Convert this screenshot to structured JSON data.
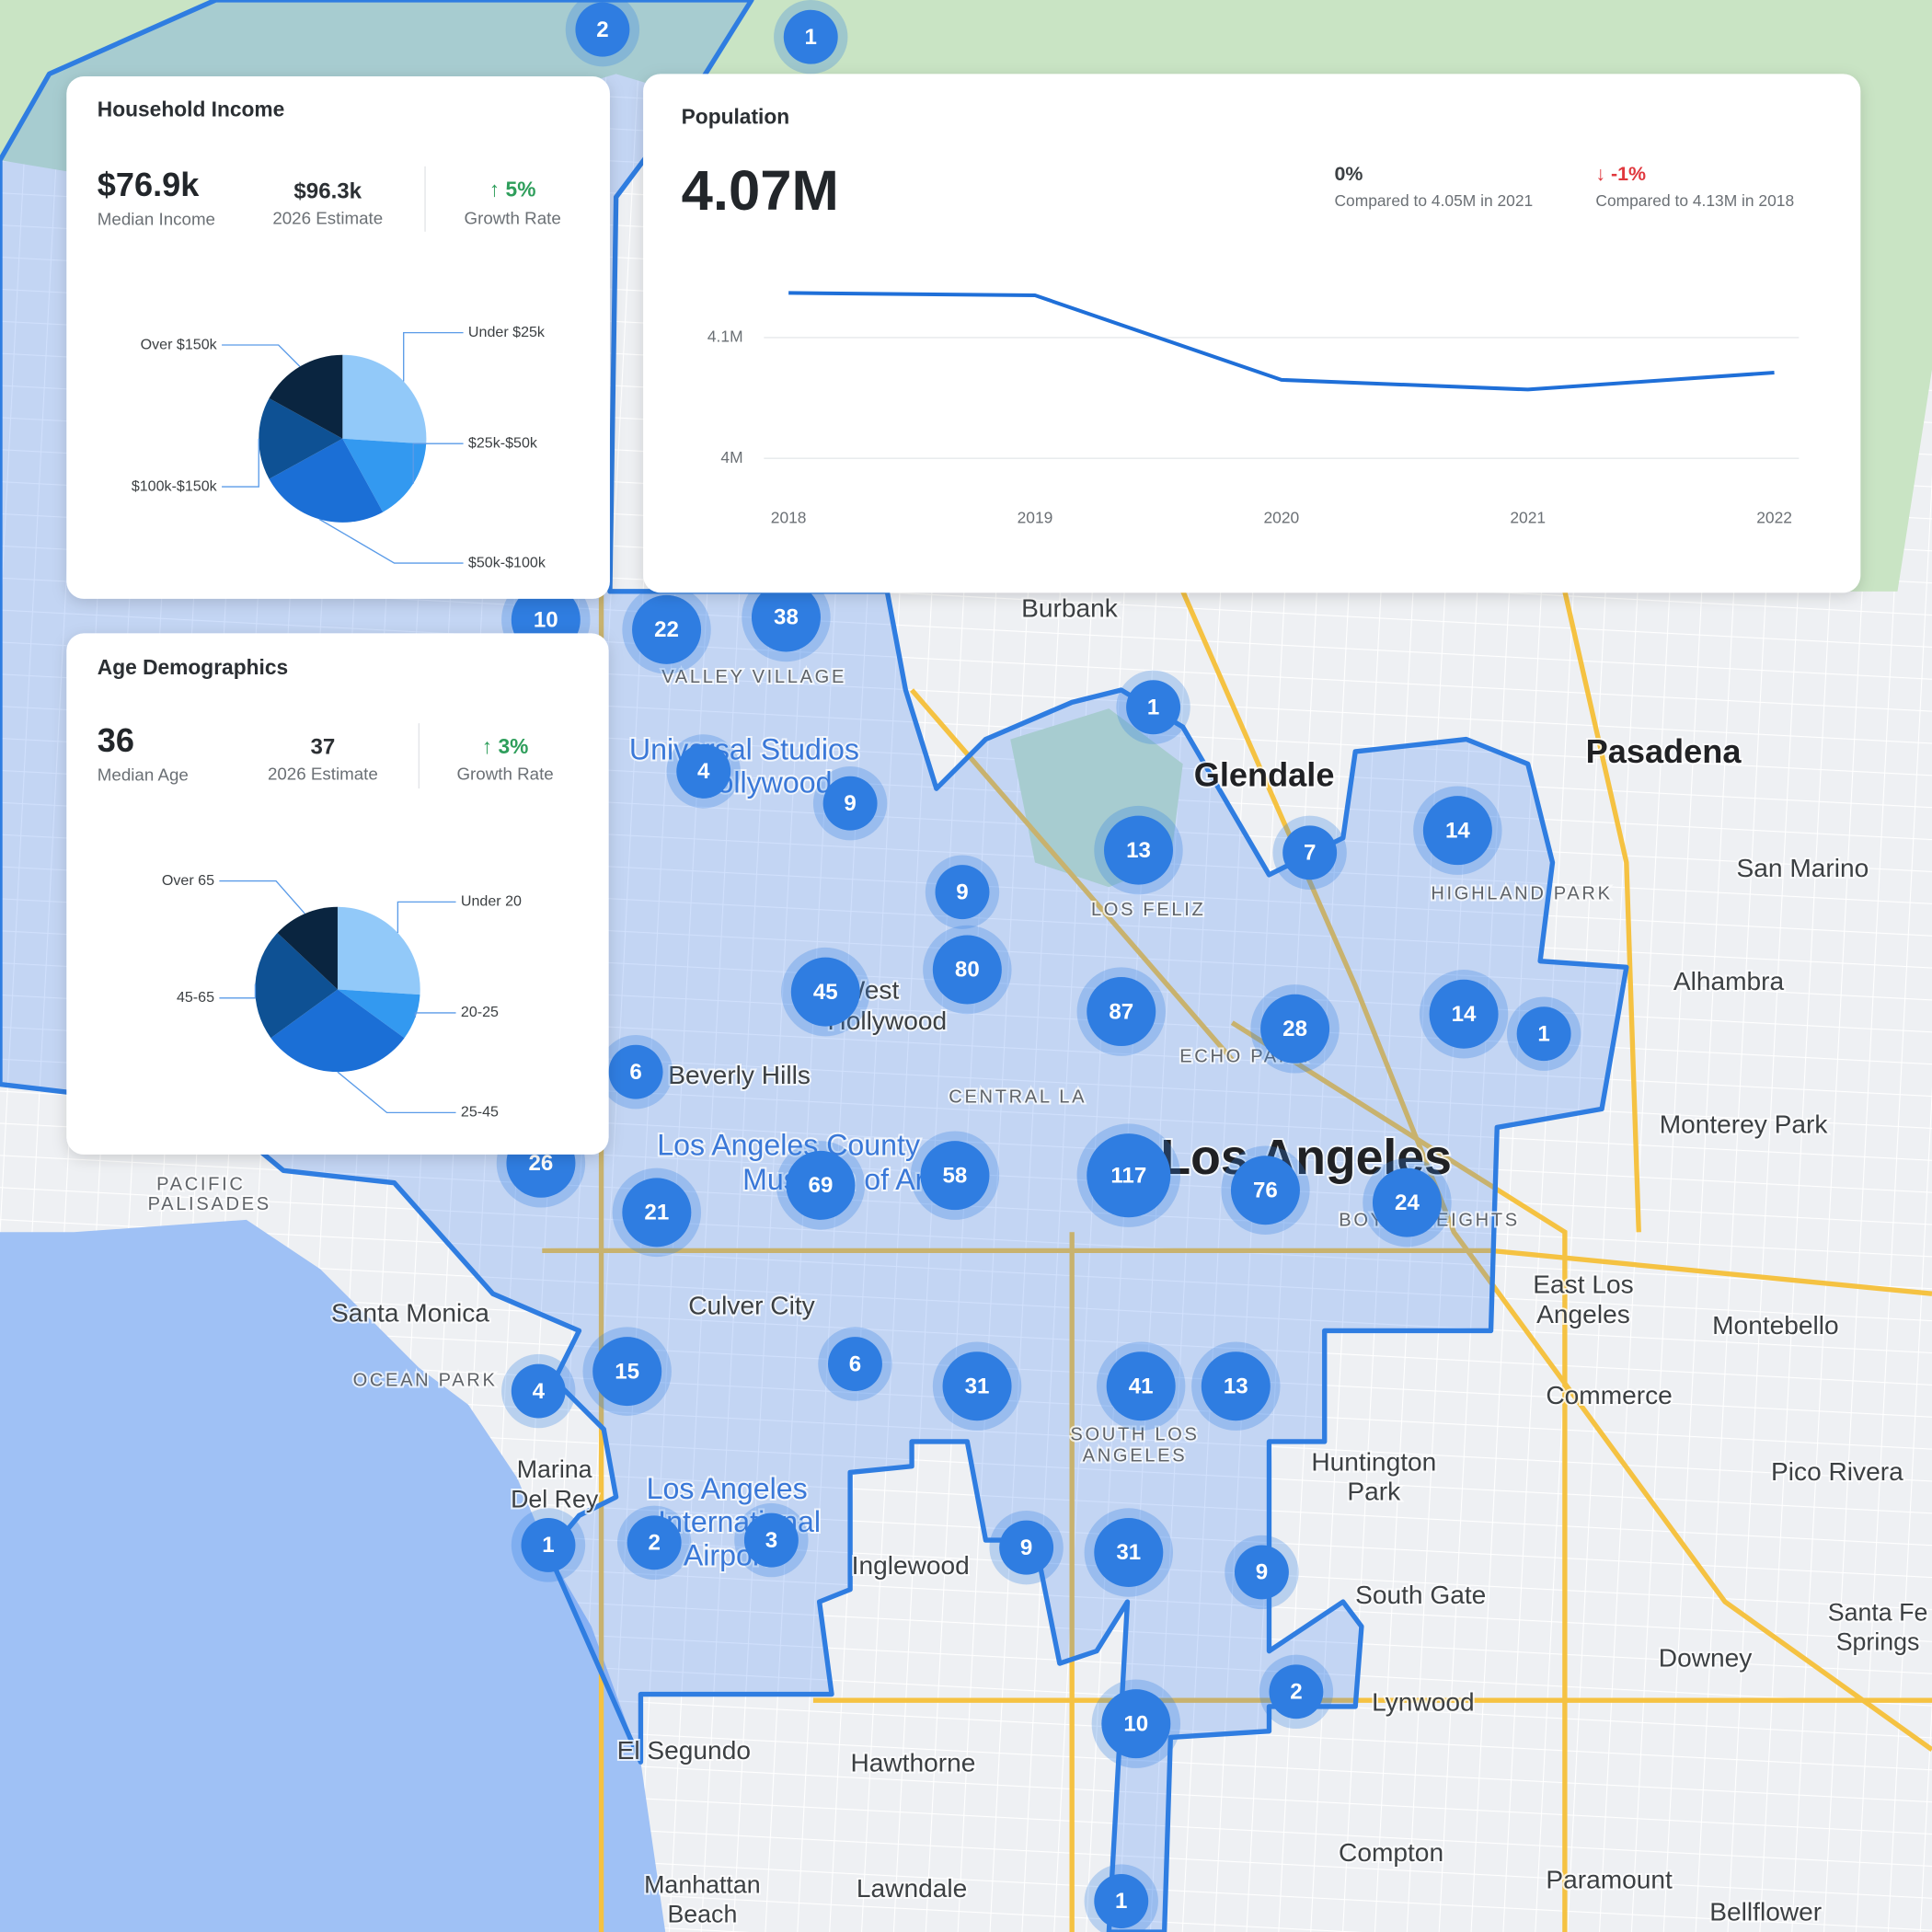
{
  "household_income": {
    "title": "Household Income",
    "median": {
      "value": "$76.9k",
      "label": "Median Income"
    },
    "estimate": {
      "value": "$96.3k",
      "label": "2026 Estimate"
    },
    "growth": {
      "value": "↑ 5%",
      "label": "Growth Rate"
    },
    "chart_data": {
      "type": "pie",
      "categories": [
        "Under $25k",
        "$25k-$50k",
        "$50k-$100k",
        "$100k-$150k",
        "Over $150k"
      ],
      "values": [
        26,
        16,
        25,
        16,
        17
      ],
      "colors": [
        "#92c9f9",
        "#3399f0",
        "#1b6fd6",
        "#0e5194",
        "#0a2540"
      ]
    }
  },
  "age_demographics": {
    "title": "Age Demographics",
    "median": {
      "value": 36,
      "label": "Median Age"
    },
    "estimate": {
      "value": 37,
      "label": "2026 Estimate"
    },
    "growth": {
      "value": "↑ 3%",
      "label": "Growth Rate"
    },
    "chart_data": {
      "type": "pie",
      "categories": [
        "Under 20",
        "20-25",
        "25-45",
        "45-65",
        "Over 65"
      ],
      "values": [
        26,
        9,
        30,
        22,
        13
      ],
      "colors": [
        "#92c9f9",
        "#3399f0",
        "#1b6fd6",
        "#0e5194",
        "#0a2540"
      ]
    }
  },
  "population": {
    "title": "Population",
    "value": "4.07M",
    "comparisons": [
      {
        "change": "0%",
        "text": "Compared to 4.05M in 2021"
      },
      {
        "change": "↓ -1%",
        "text": "Compared to 4.13M in 2018"
      }
    ],
    "chart_data": {
      "type": "line",
      "x": [
        2018,
        2019,
        2020,
        2021,
        2022
      ],
      "values": [
        4.137,
        4.135,
        4.065,
        4.057,
        4.071
      ],
      "color": "#1f6fd8",
      "xlim": [
        2018,
        2022
      ],
      "xticks": [
        2018,
        2019,
        2020,
        2021,
        2022
      ],
      "ylim": [
        4.0,
        4.15
      ],
      "yticks": [
        {
          "value": 4,
          "label": "4M"
        },
        {
          "value": 4.1,
          "label": "4.1M"
        }
      ],
      "grid": true
    }
  },
  "map": {
    "places": [
      "Burbank",
      "Glendale",
      "Pasadena",
      "San Marino",
      "Alhambra",
      "Monterey Park",
      "East Los",
      "Angeles",
      "Montebello",
      "Commerce",
      "Huntington",
      "Park",
      "South Gate",
      "Lynwood",
      "Downey",
      "Pico Rivera",
      "Santa Fe",
      "Springs",
      "Compton",
      "Paramount",
      "Bellflower",
      "Hawthorne",
      "Lawndale",
      "Inglewood",
      "El Segundo",
      "Manhattan",
      "Beach",
      "Culver City",
      "Santa Monica",
      "Marina",
      "Del Rey",
      "Los Angeles",
      "PACIFIC",
      "PALISADES",
      "LOS FELIZ",
      "HIGHLAND PARK",
      "CENTRAL LA",
      "SOUTH LOS",
      "ANGELES",
      "VALLEY VILLAGE",
      "ECHO PARK",
      "BOYLE HEIGHTS",
      "OCEAN PARK",
      "Beverly Hills",
      "West",
      "Hollywood",
      "Universal Studios",
      "Hollywood",
      "Los Angeles County",
      "Museum of Art",
      "Los Angeles",
      "International",
      "Airport"
    ],
    "clusters": [
      1,
      2,
      1,
      22,
      38,
      10,
      4,
      9,
      13,
      7,
      14,
      9,
      80,
      45,
      87,
      28,
      14,
      1,
      6,
      117,
      76,
      24,
      58,
      69,
      21,
      26,
      15,
      4,
      6,
      31,
      41,
      13,
      9,
      31,
      9,
      1,
      2,
      3,
      2,
      10,
      1
    ]
  }
}
